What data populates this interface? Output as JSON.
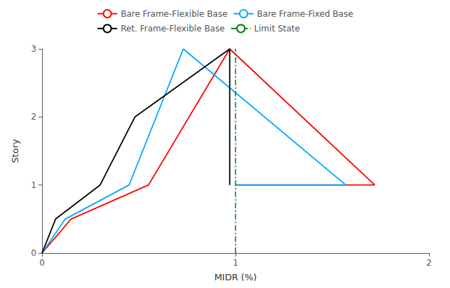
{
  "chart_data": {
    "type": "line",
    "xlabel": "MIDR (%)",
    "ylabel": "Story",
    "xlim": [
      0,
      2
    ],
    "ylim": [
      0,
      3
    ],
    "xticks": [
      0,
      1,
      2
    ],
    "yticks": [
      0,
      1,
      2,
      3
    ],
    "grid": false,
    "legend": "top",
    "series": [
      {
        "name": "Bare Frame-Flexible Base",
        "color": "#ff0000",
        "x": [
          0,
          0.15,
          0.55,
          0.97,
          1.72,
          1.0
        ],
        "values": [
          0,
          0.5,
          1.0,
          3.0,
          1.0,
          1.0
        ]
      },
      {
        "name": "Bare Frame-Fixed Base",
        "color": "#00aaff",
        "x": [
          0,
          0.12,
          0.45,
          0.73,
          1.57,
          1.0
        ],
        "values": [
          0,
          0.5,
          1.0,
          3.0,
          1.0,
          1.0
        ]
      },
      {
        "name": "Ret. Frame-Flexible Base",
        "color": "#000000",
        "x": [
          0,
          0.07,
          0.3,
          0.48,
          0.97,
          0.97
        ],
        "values": [
          0,
          0.5,
          1.0,
          2.0,
          3.0,
          1.0
        ]
      },
      {
        "name": "Limit State",
        "type": "vline",
        "color": "#008000",
        "line_style": "dashdot",
        "x": 1.0
      }
    ]
  }
}
